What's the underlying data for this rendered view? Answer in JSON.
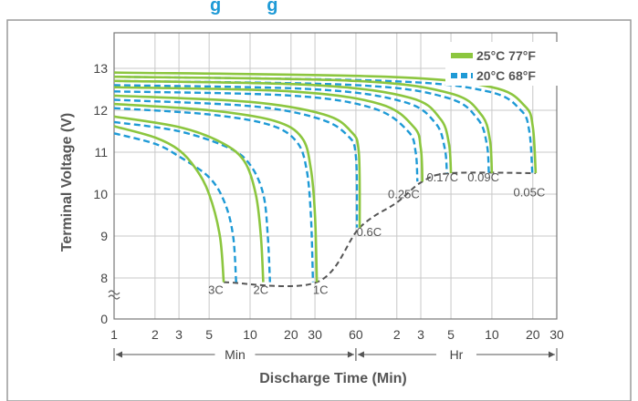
{
  "page": {
    "title_fragment": "g         g"
  },
  "chart_data": {
    "type": "line",
    "title": "",
    "xlabel": "Discharge Time (Min)",
    "ylabel": "Terminal Voltage (V)",
    "xscale": "log",
    "xlim": [
      1,
      1800
    ],
    "ylim": [
      7.5,
      14
    ],
    "y_axis_break": true,
    "y_ticks": [
      "13",
      "12",
      "11",
      "10",
      "9",
      "8",
      "0"
    ],
    "x_ticks": [
      {
        "label": "1",
        "minutes": 1
      },
      {
        "label": "2",
        "minutes": 2
      },
      {
        "label": "3",
        "minutes": 3
      },
      {
        "label": "5",
        "minutes": 5
      },
      {
        "label": "10",
        "minutes": 10
      },
      {
        "label": "20",
        "minutes": 20
      },
      {
        "label": "30",
        "minutes": 30
      },
      {
        "label": "60",
        "minutes": 60
      },
      {
        "label": "2",
        "minutes": 120
      },
      {
        "label": "3",
        "minutes": 180
      },
      {
        "label": "5",
        "minutes": 300
      },
      {
        "label": "10",
        "minutes": 600
      },
      {
        "label": "20",
        "minutes": 1200
      },
      {
        "label": "30",
        "minutes": 1800
      }
    ],
    "ranges": [
      {
        "label": "Min",
        "from_minutes": 1,
        "to_minutes": 60
      },
      {
        "label": "Hr",
        "from_minutes": 60,
        "to_minutes": 1800
      }
    ],
    "grid": true,
    "legend_position": "top-right",
    "legend": [
      {
        "label": "25°C 77°F",
        "color": "#8cc63f",
        "style": "solid"
      },
      {
        "label": "20°C 68°F",
        "color": "#1e9ad6",
        "style": "dashed"
      }
    ],
    "series": [
      {
        "rate": "3C",
        "label": "3C",
        "color_25": "#8cc63f",
        "color_20": "#1e9ad6",
        "t25": [
          [
            1,
            11.62
          ],
          [
            2,
            11.35
          ],
          [
            3,
            11.05
          ],
          [
            4,
            10.6
          ],
          [
            5,
            10.0
          ],
          [
            6,
            9.0
          ],
          [
            6.4,
            7.9
          ]
        ],
        "t20": [
          [
            1,
            11.45
          ],
          [
            2,
            11.2
          ],
          [
            3,
            10.9
          ],
          [
            5,
            10.4
          ],
          [
            6.5,
            9.8
          ],
          [
            7.5,
            9.0
          ],
          [
            7.9,
            7.9
          ]
        ],
        "cutoff_25": 7.9
      },
      {
        "rate": "2C",
        "label": "2C",
        "color_25": "#8cc63f",
        "color_20": "#1e9ad6",
        "t25": [
          [
            1,
            11.85
          ],
          [
            3,
            11.6
          ],
          [
            6,
            11.25
          ],
          [
            9,
            10.8
          ],
          [
            11,
            10.0
          ],
          [
            12,
            9.0
          ],
          [
            12.5,
            7.9
          ]
        ],
        "t20": [
          [
            1,
            11.72
          ],
          [
            3,
            11.5
          ],
          [
            7,
            11.1
          ],
          [
            10,
            10.7
          ],
          [
            12.5,
            10.0
          ],
          [
            13.5,
            9.0
          ],
          [
            14,
            7.9
          ]
        ],
        "cutoff_25": 7.9
      },
      {
        "rate": "1C",
        "label": "1C",
        "color_25": "#8cc63f",
        "color_20": "#1e9ad6",
        "t25": [
          [
            1,
            12.15
          ],
          [
            5,
            12.0
          ],
          [
            15,
            11.75
          ],
          [
            24,
            11.35
          ],
          [
            28,
            10.6
          ],
          [
            30,
            9.5
          ],
          [
            31,
            7.9
          ]
        ],
        "t20": [
          [
            1,
            12.05
          ],
          [
            5,
            11.9
          ],
          [
            14,
            11.65
          ],
          [
            22,
            11.25
          ],
          [
            26,
            10.6
          ],
          [
            28,
            9.5
          ],
          [
            29,
            7.9
          ]
        ],
        "cutoff_25": 7.9
      },
      {
        "rate": "0.6C",
        "label": "0.6C",
        "color_25": "#8cc63f",
        "color_20": "#1e9ad6",
        "t25": [
          [
            1,
            12.35
          ],
          [
            10,
            12.2
          ],
          [
            35,
            11.9
          ],
          [
            55,
            11.5
          ],
          [
            63,
            11.0
          ],
          [
            64,
            9.2
          ]
        ],
        "t20": [
          [
            1,
            12.25
          ],
          [
            10,
            12.1
          ],
          [
            32,
            11.8
          ],
          [
            52,
            11.4
          ],
          [
            60,
            10.9
          ],
          [
            61,
            9.2
          ]
        ],
        "cutoff_25": 9.2
      },
      {
        "rate": "0.25C",
        "label": "0.25C",
        "color_25": "#8cc63f",
        "color_20": "#1e9ad6",
        "t25": [
          [
            1,
            12.55
          ],
          [
            20,
            12.45
          ],
          [
            90,
            12.15
          ],
          [
            160,
            11.6
          ],
          [
            180,
            11.1
          ],
          [
            185,
            10.3
          ]
        ],
        "t20": [
          [
            1,
            12.45
          ],
          [
            20,
            12.35
          ],
          [
            80,
            12.05
          ],
          [
            145,
            11.5
          ],
          [
            165,
            11.0
          ],
          [
            170,
            10.3
          ]
        ],
        "cutoff_25": 10.3
      },
      {
        "rate": "0.17C",
        "label": "0.17C",
        "color_25": "#8cc63f",
        "color_20": "#1e9ad6",
        "t25": [
          [
            1,
            12.7
          ],
          [
            30,
            12.6
          ],
          [
            150,
            12.3
          ],
          [
            250,
            11.8
          ],
          [
            290,
            11.2
          ],
          [
            300,
            10.5
          ]
        ],
        "t20": [
          [
            1,
            12.6
          ],
          [
            30,
            12.5
          ],
          [
            135,
            12.2
          ],
          [
            230,
            11.7
          ],
          [
            270,
            11.1
          ],
          [
            280,
            10.5
          ]
        ],
        "cutoff_25": 10.5
      },
      {
        "rate": "0.09C",
        "label": "0.09C",
        "color_25": "#8cc63f",
        "color_20": "#1e9ad6",
        "t25": [
          [
            1,
            12.8
          ],
          [
            60,
            12.7
          ],
          [
            300,
            12.4
          ],
          [
            500,
            11.9
          ],
          [
            580,
            11.3
          ],
          [
            600,
            10.5
          ]
        ],
        "t20": [
          [
            1,
            12.7
          ],
          [
            60,
            12.6
          ],
          [
            280,
            12.3
          ],
          [
            470,
            11.8
          ],
          [
            550,
            11.2
          ],
          [
            570,
            10.5
          ]
        ],
        "cutoff_25": 10.5
      },
      {
        "rate": "0.05C",
        "label": "0.05C",
        "color_25": "#8cc63f",
        "color_20": "#1e9ad6",
        "t25": [
          [
            1,
            12.9
          ],
          [
            100,
            12.8
          ],
          [
            600,
            12.55
          ],
          [
            1050,
            12.1
          ],
          [
            1200,
            11.6
          ],
          [
            1260,
            10.5
          ]
        ],
        "t20": [
          [
            1,
            12.8
          ],
          [
            100,
            12.7
          ],
          [
            560,
            12.45
          ],
          [
            980,
            12.0
          ],
          [
            1130,
            11.5
          ],
          [
            1190,
            10.5
          ]
        ],
        "cutoff_25": 10.5
      }
    ],
    "cutoff_line": {
      "color": "#555555",
      "points": [
        [
          6.4,
          7.9
        ],
        [
          31,
          7.9
        ],
        [
          64,
          9.2
        ],
        [
          120,
          9.8
        ],
        [
          185,
          10.3
        ],
        [
          300,
          10.5
        ],
        [
          1260,
          10.5
        ]
      ]
    },
    "curve_labels": [
      {
        "text": "3C",
        "x": 5.6,
        "y": 7.62
      },
      {
        "text": "2C",
        "x": 12,
        "y": 7.62
      },
      {
        "text": "1C",
        "x": 33,
        "y": 7.62
      },
      {
        "text": "0.6C",
        "x": 75,
        "y": 9.0
      },
      {
        "text": "0.25C",
        "x": 135,
        "y": 9.9
      },
      {
        "text": "0.17C",
        "x": 260,
        "y": 10.3
      },
      {
        "text": "0.09C",
        "x": 520,
        "y": 10.3
      },
      {
        "text": "0.05C",
        "x": 1130,
        "y": 9.95
      }
    ]
  }
}
